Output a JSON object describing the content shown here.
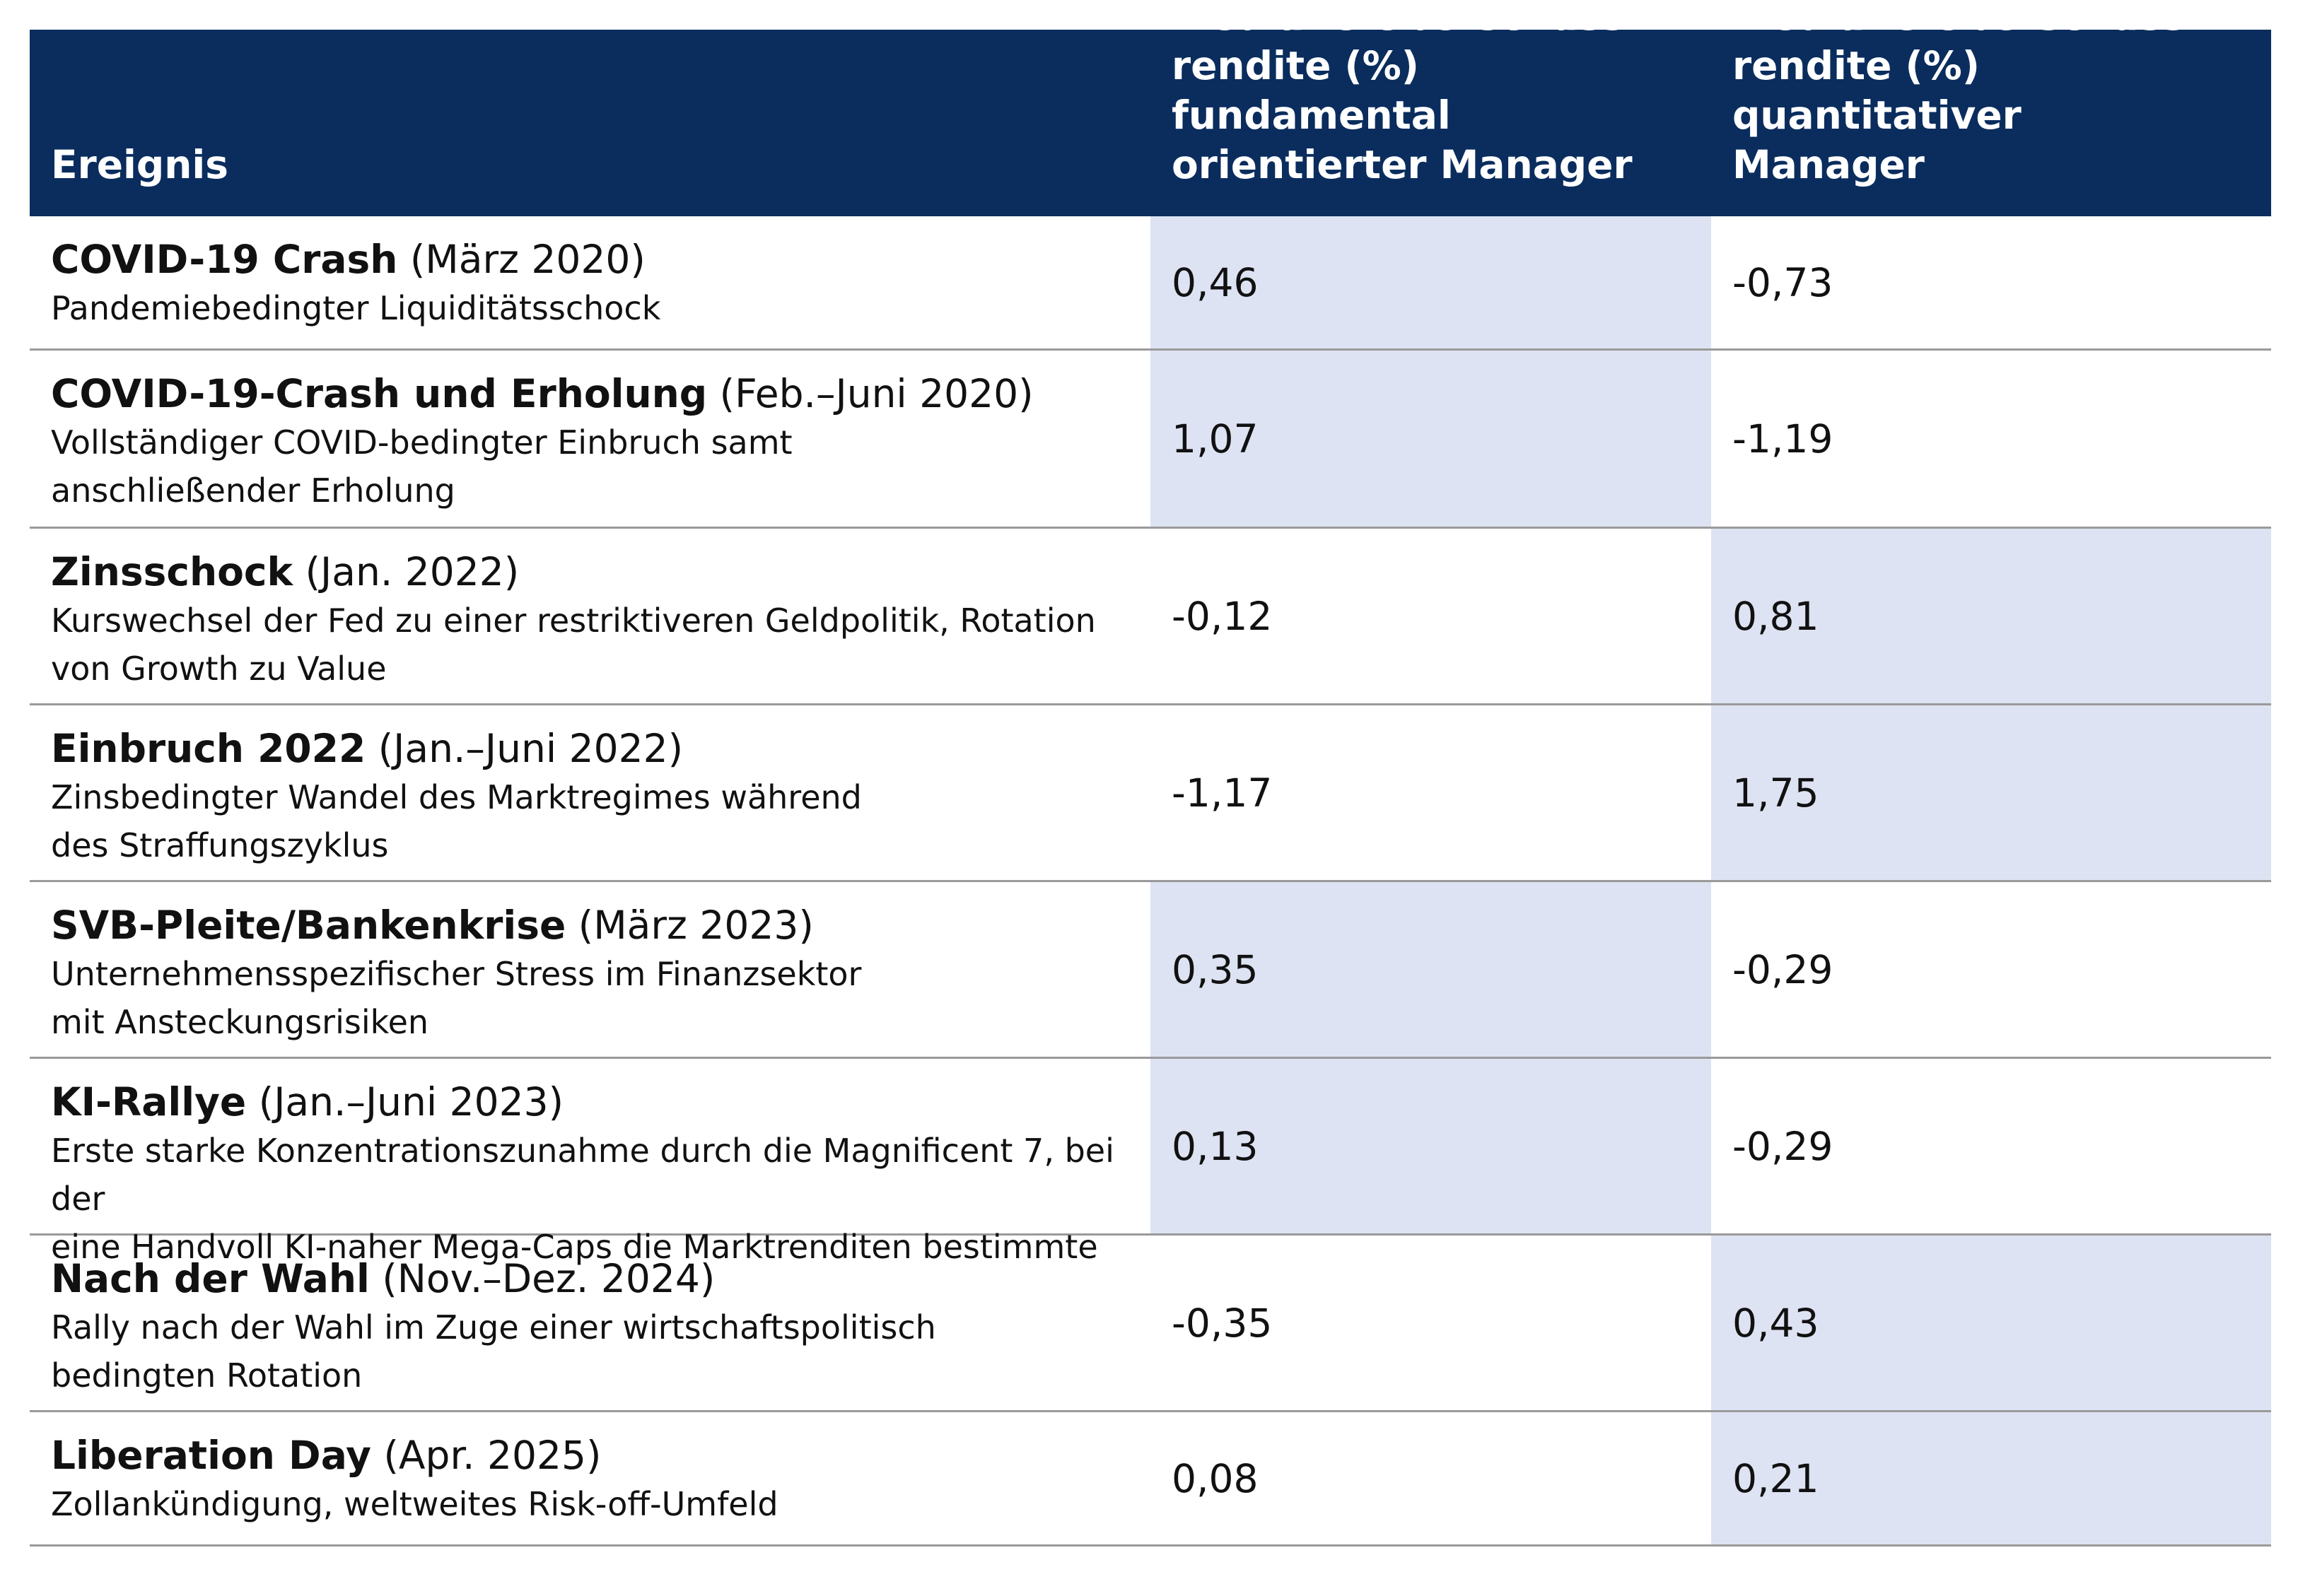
{
  "header": {
    "col1": "Ereignis",
    "col2": "Mediane Überschuss-\nrendite (%) fundamental\norientierter Manager",
    "col3": "Mediane Überschuss-\nrendite (%) quantitativer\nManager"
  },
  "rows": [
    {
      "name": "COVID-19 Crash",
      "period": "(März 2020)",
      "desc": "Pandemiebedingter Liquiditätsschock",
      "fund": "0,46",
      "quant": "-0,73"
    },
    {
      "name": "COVID-19-Crash und Erholung",
      "period": "(Feb.–Juni 2020)",
      "desc": "Vollständiger COVID-bedingter Einbruch samt\nanschließender Erholung",
      "fund": "1,07",
      "quant": "-1,19"
    },
    {
      "name": "Zinsschock",
      "period": "(Jan. 2022)",
      "desc": "Kurswechsel der Fed zu einer restriktiveren Geldpolitik, Rotation\nvon Growth zu Value",
      "fund": "-0,12",
      "quant": "0,81"
    },
    {
      "name": "Einbruch 2022",
      "period": "(Jan.–Juni 2022)",
      "desc": "Zinsbedingter Wandel des Marktregimes während\ndes Straffungszyklus",
      "fund": "-1,17",
      "quant": "1,75"
    },
    {
      "name": "SVB-Pleite/Bankenkrise",
      "period": "(März 2023)",
      "desc": "Unternehmensspezifischer Stress im Finanzsektor\nmit Ansteckungsrisiken",
      "fund": "0,35",
      "quant": "-0,29"
    },
    {
      "name": "KI-Rallye",
      "period": "(Jan.–Juni 2023)",
      "desc": "Erste starke Konzentrationszunahme durch die Magnificent 7, bei der\neine Handvoll KI-naher Mega-Caps die Marktrenditen bestimmte",
      "fund": "0,13",
      "quant": "-0,29"
    },
    {
      "name": "Nach der Wahl",
      "period": "(Nov.–Dez. 2024)",
      "desc": "Rally nach der Wahl im Zuge einer wirtschaftspolitisch\nbedingten Rotation",
      "fund": "-0,35",
      "quant": "0,43"
    },
    {
      "name": "Liberation Day",
      "period": "(Apr. 2025)",
      "desc": "Zollankündigung, weltweites Risk-off-Umfeld",
      "fund": "0,08",
      "quant": "0,21"
    }
  ],
  "colors": {
    "header_bg": "#0a2d5e",
    "highlight": "#dde3f2",
    "divider": "#9a9a9a"
  }
}
